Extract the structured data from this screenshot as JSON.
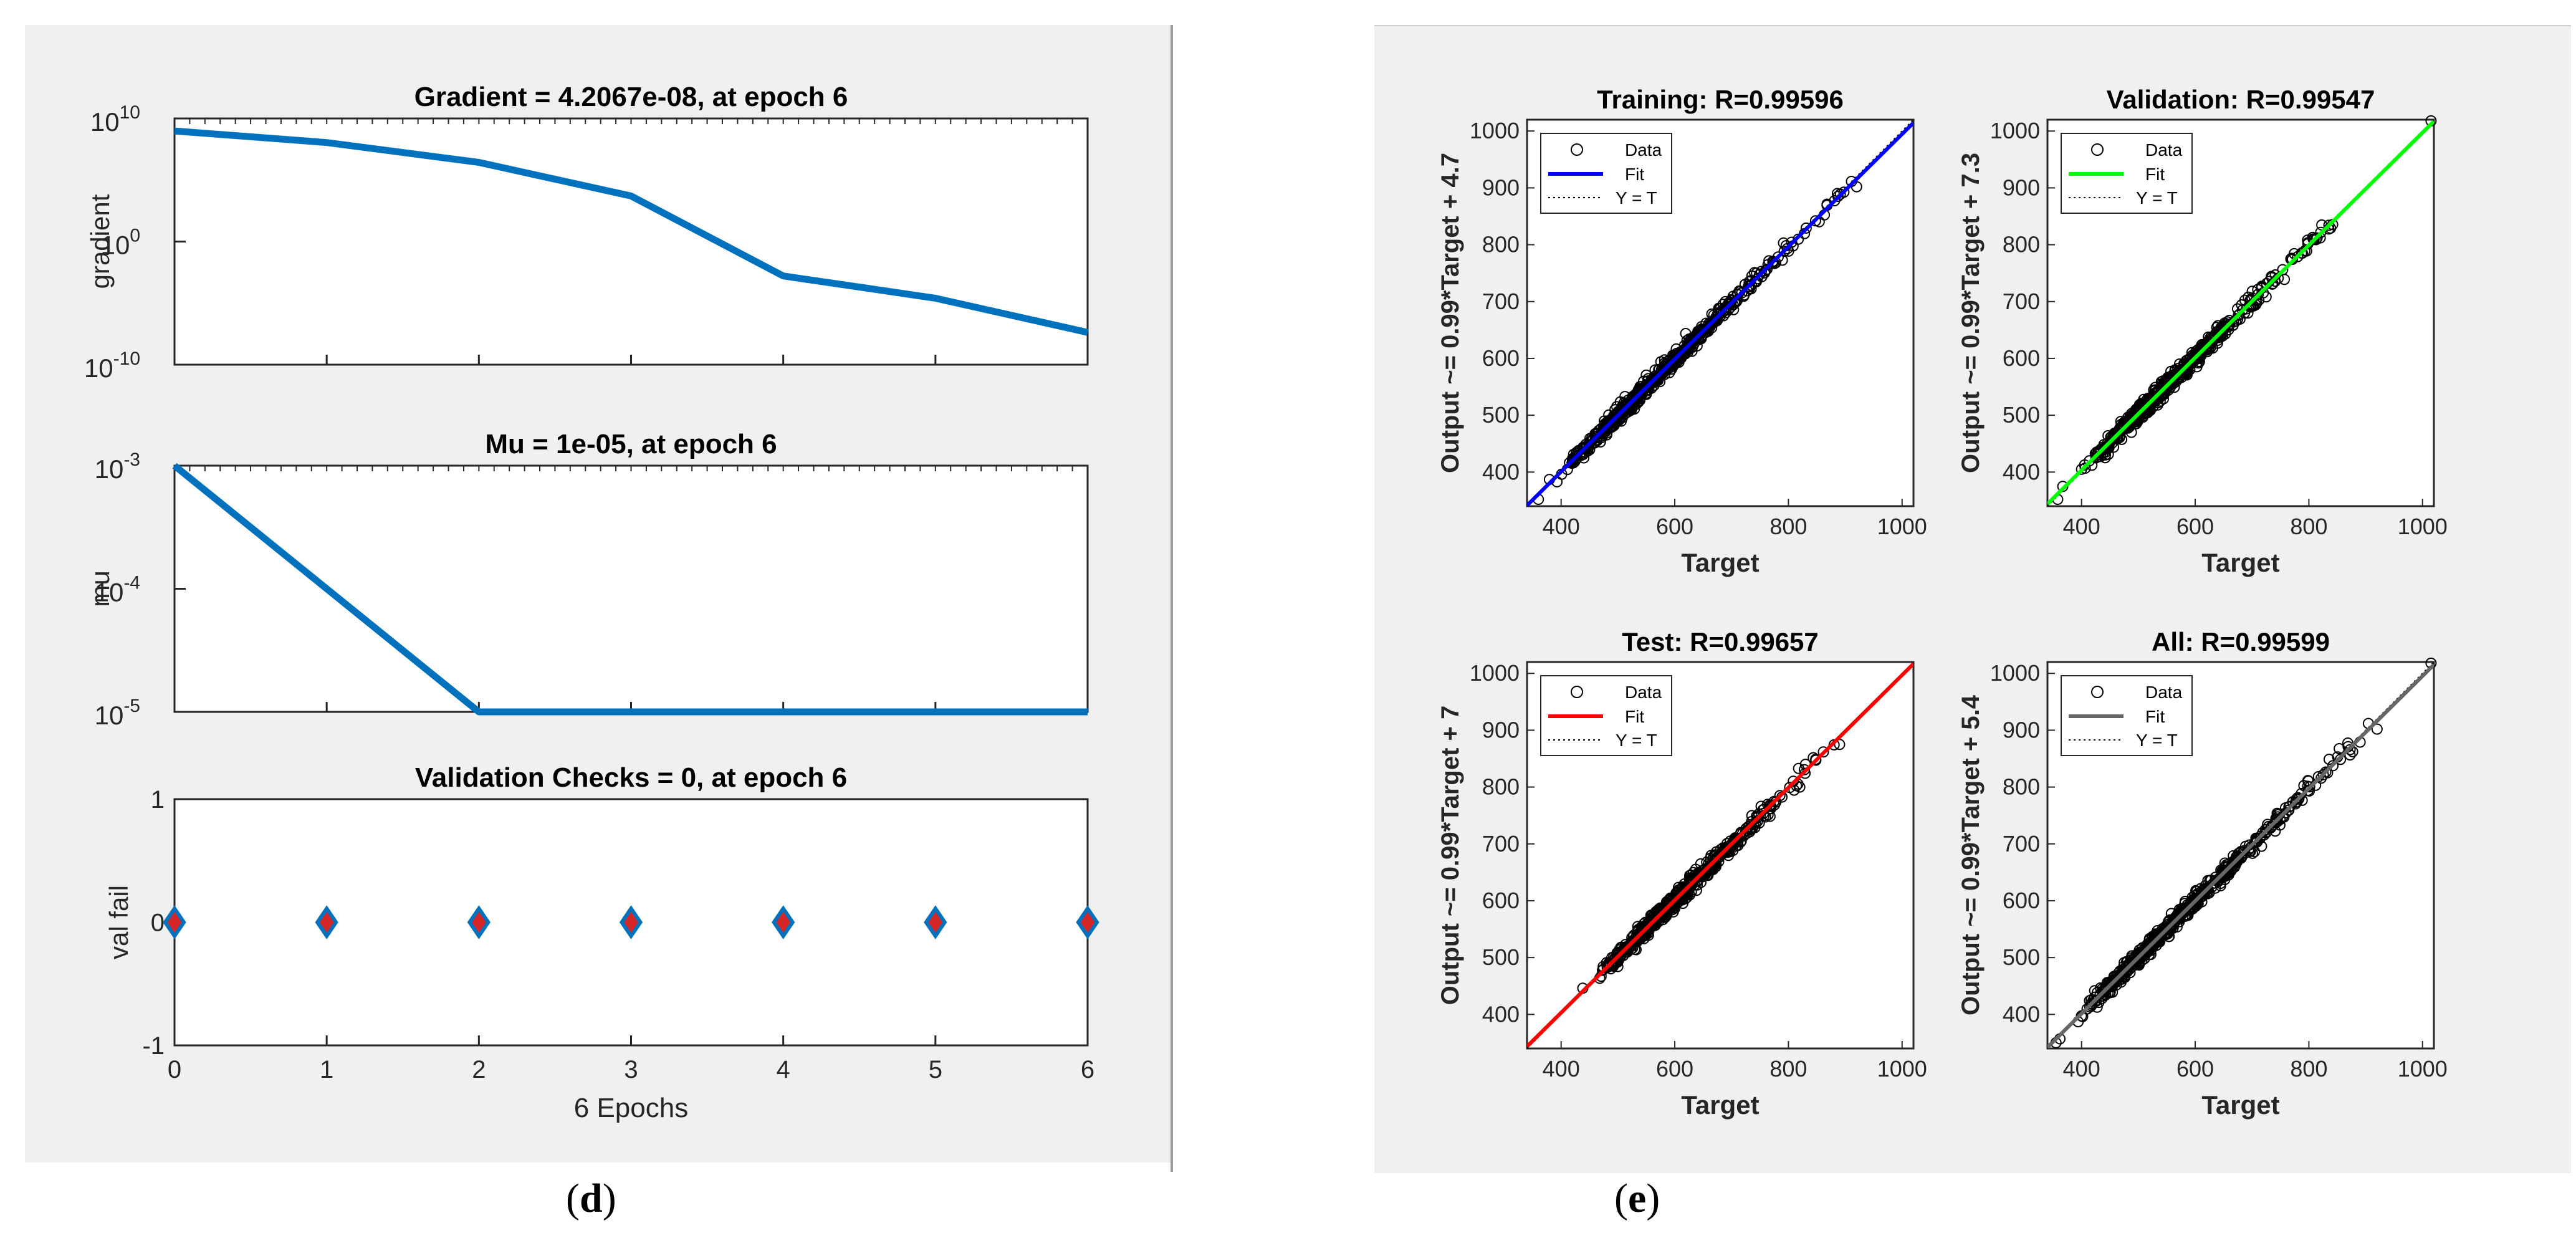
{
  "panels": {
    "left_label": "d",
    "right_label": "e"
  },
  "chart_data": [
    {
      "type": "line",
      "title": "Gradient = 4.2067e-08, at epoch 6",
      "xlabel": "",
      "ylabel": "gradient",
      "yscale": "log",
      "x": [
        0,
        1,
        2,
        3,
        4,
        5,
        6
      ],
      "y": [
        960000000.0,
        110000000.0,
        2700000.0,
        5000.0,
        0.0016,
        2.5e-05,
        4.2067e-08
      ],
      "xlim": [
        0,
        6
      ],
      "ylim_exp": [
        -10,
        10
      ],
      "yticks": [
        {
          "exp": 10,
          "base": "10",
          "sup": "10"
        },
        {
          "exp": 0,
          "base": "10",
          "sup": "0"
        },
        {
          "exp": -10,
          "base": "10",
          "sup": "-10"
        }
      ],
      "line_color": "#0072bd"
    },
    {
      "type": "line",
      "title": "Mu = 1e-05, at epoch 6",
      "xlabel": "",
      "ylabel": "mu",
      "yscale": "log",
      "x": [
        0,
        1,
        2,
        3,
        4,
        5,
        6
      ],
      "y": [
        0.001,
        0.0001,
        1e-05,
        1e-05,
        1e-05,
        1e-05,
        1e-05
      ],
      "xlim": [
        0,
        6
      ],
      "ylim_exp": [
        -5,
        -3
      ],
      "yticks": [
        {
          "exp": -3,
          "base": "10",
          "sup": "-3"
        },
        {
          "exp": -4,
          "base": "10",
          "sup": "-4"
        },
        {
          "exp": -5,
          "base": "10",
          "sup": "-5"
        }
      ],
      "line_color": "#0072bd"
    },
    {
      "type": "scatter",
      "title": "Validation Checks = 0, at epoch 6",
      "xlabel": "6 Epochs",
      "ylabel": "val fail",
      "x": [
        0,
        1,
        2,
        3,
        4,
        5,
        6
      ],
      "y": [
        0,
        0,
        0,
        0,
        0,
        0,
        0
      ],
      "xlim": [
        0,
        6
      ],
      "ylim": [
        -1,
        1
      ],
      "xticks": [
        "0",
        "1",
        "2",
        "3",
        "4",
        "5",
        "6"
      ],
      "yticks": [
        "1",
        "0",
        "-1"
      ],
      "marker": "diamond",
      "marker_face": "#d62728",
      "marker_edge": "#0072bd"
    },
    {
      "type": "scatter",
      "title": "Training: R=0.99596",
      "xlabel": "Target",
      "ylabel": "Output ~= 0.99*Target + 4.7",
      "xlim": [
        340,
        1020
      ],
      "ylim": [
        340,
        1020
      ],
      "xticks": [
        "400",
        "600",
        "800",
        "1000"
      ],
      "yticks": [
        "400",
        "500",
        "600",
        "700",
        "800",
        "900",
        "1000"
      ],
      "fit": {
        "slope": 0.99,
        "intercept": 4.7,
        "color": "#0000ff"
      },
      "legend": [
        "Data",
        "Fit",
        "Y = T"
      ],
      "data_range": [
        350,
        920
      ],
      "outliers": [
        [
          360,
          352
        ],
        [
          920,
          902
        ],
        [
          440,
          425
        ]
      ],
      "seed": 11
    },
    {
      "type": "scatter",
      "title": "Validation: R=0.99547",
      "xlabel": "Target",
      "ylabel": "Output ~= 0.99*Target + 7.3",
      "xlim": [
        340,
        1020
      ],
      "ylim": [
        340,
        1020
      ],
      "xticks": [
        "400",
        "600",
        "800",
        "1000"
      ],
      "yticks": [
        "400",
        "500",
        "600",
        "700",
        "800",
        "900",
        "1000"
      ],
      "fit": {
        "slope": 0.99,
        "intercept": 7.3,
        "color": "#00ff00"
      },
      "legend": [
        "Data",
        "Fit",
        "Y = T"
      ],
      "data_range": [
        360,
        860
      ],
      "outliers": [
        [
          358,
          352
        ],
        [
          1015,
          1018
        ],
        [
          400,
          405
        ],
        [
          430,
          427
        ],
        [
          820,
          812
        ]
      ],
      "seed": 23
    },
    {
      "type": "scatter",
      "title": "Test: R=0.99657",
      "xlabel": "Target",
      "ylabel": "Output ~= 0.99*Target + 7",
      "xlim": [
        340,
        1020
      ],
      "ylim": [
        340,
        1020
      ],
      "xticks": [
        "400",
        "600",
        "800",
        "1000"
      ],
      "yticks": [
        "400",
        "500",
        "600",
        "700",
        "800",
        "900",
        "1000"
      ],
      "fit": {
        "slope": 0.99,
        "intercept": 7,
        "color": "#ff0000"
      },
      "legend": [
        "Data",
        "Fit",
        "Y = T"
      ],
      "data_range": [
        420,
        890
      ],
      "outliers": [
        [
          890,
          875
        ],
        [
          830,
          840
        ],
        [
          820,
          800
        ]
      ],
      "seed": 37
    },
    {
      "type": "scatter",
      "title": "All: R=0.99599",
      "xlabel": "Target",
      "ylabel": "Output ~= 0.99*Target + 5.4",
      "xlim": [
        340,
        1020
      ],
      "ylim": [
        340,
        1020
      ],
      "xticks": [
        "400",
        "600",
        "800",
        "1000"
      ],
      "yticks": [
        "400",
        "500",
        "600",
        "700",
        "800",
        "900",
        "1000"
      ],
      "fit": {
        "slope": 0.99,
        "intercept": 5.4,
        "color": "#666666"
      },
      "legend": [
        "Data",
        "Fit",
        "Y = T"
      ],
      "data_range": [
        350,
        920
      ],
      "outliers": [
        [
          355,
          350
        ],
        [
          362,
          357
        ],
        [
          1015,
          1018
        ],
        [
          920,
          902
        ]
      ],
      "seed": 53
    }
  ]
}
